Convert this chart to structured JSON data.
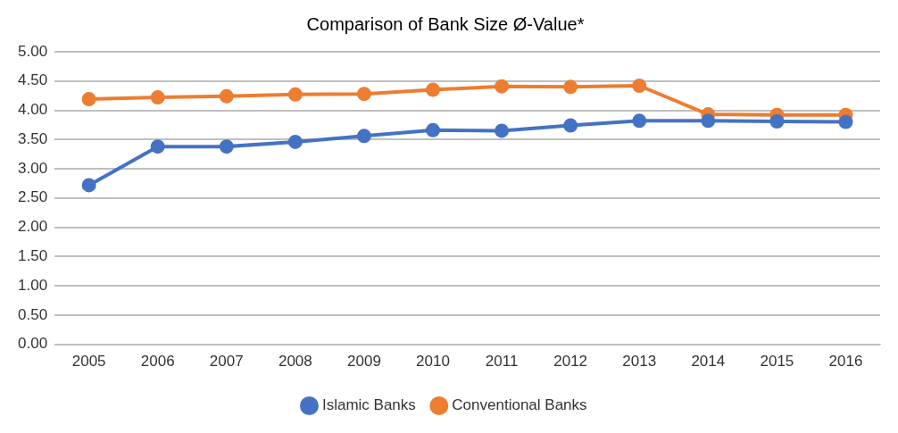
{
  "chart_data": {
    "type": "line",
    "title": "Comparison of Bank Size Ø-Value*",
    "categories": [
      "2005",
      "2006",
      "2007",
      "2008",
      "2009",
      "2010",
      "2011",
      "2012",
      "2013",
      "2014",
      "2015",
      "2016"
    ],
    "series": [
      {
        "name": "Islamic Banks",
        "color": "#4472c4",
        "values": [
          2.72,
          3.38,
          3.38,
          3.46,
          3.56,
          3.66,
          3.65,
          3.74,
          3.82,
          3.82,
          3.81,
          3.8
        ]
      },
      {
        "name": "Conventional Banks",
        "color": "#ed7d31",
        "values": [
          4.19,
          4.22,
          4.24,
          4.27,
          4.28,
          4.35,
          4.41,
          4.4,
          4.42,
          3.93,
          3.92,
          3.92
        ]
      }
    ],
    "ylim": [
      0,
      5
    ],
    "yticks": [
      {
        "value": 0,
        "label": "0.00"
      },
      {
        "value": 0.5,
        "label": "0.50"
      },
      {
        "value": 1,
        "label": "1.00"
      },
      {
        "value": 1.5,
        "label": "1.50"
      },
      {
        "value": 2,
        "label": "2.00"
      },
      {
        "value": 2.5,
        "label": "2.50"
      },
      {
        "value": 3,
        "label": "3.00"
      },
      {
        "value": 3.5,
        "label": "3.50"
      },
      {
        "value": 4,
        "label": "4.00"
      },
      {
        "value": 4.5,
        "label": "4.50"
      },
      {
        "value": 5,
        "label": "5.00"
      }
    ],
    "grid": "y",
    "legend": "bottom",
    "marker": "circle",
    "line_style": "solid"
  }
}
